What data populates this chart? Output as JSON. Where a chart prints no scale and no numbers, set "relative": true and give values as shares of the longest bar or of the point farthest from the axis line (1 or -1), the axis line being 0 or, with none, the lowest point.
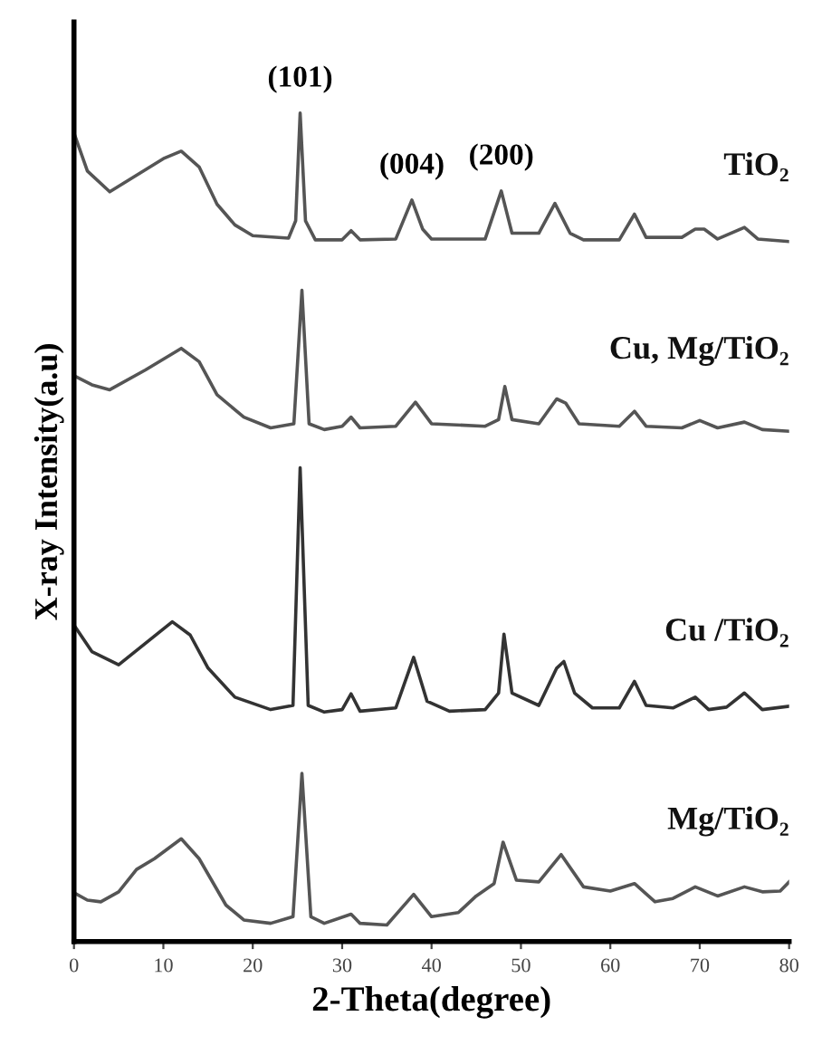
{
  "chart_data": {
    "type": "line",
    "relative": true,
    "xlabel": "2-Theta(degree)",
    "ylabel": "X-ray Intensity(a.u)",
    "xlim": [
      0,
      80
    ],
    "xticks": [
      0,
      10,
      20,
      30,
      40,
      50,
      60,
      70,
      80
    ],
    "legend": false,
    "grid": false,
    "marker": "none",
    "line_style": "solid",
    "annotations": [
      {
        "text": "(101)",
        "x": 25.3,
        "y": 1.0
      },
      {
        "text": "(004)",
        "x": 37.8,
        "y": 0.895
      },
      {
        "text": "(200)",
        "x": 47.8,
        "y": 0.906
      }
    ],
    "series": [
      {
        "name": "TiO₂",
        "color": "#555555",
        "x": [
          0,
          1.5,
          4,
          7,
          10,
          12,
          14,
          16,
          18,
          20,
          24,
          24.8,
          25.3,
          25.9,
          27,
          30,
          31,
          32,
          36,
          37.8,
          39,
          40,
          46,
          47.8,
          49,
          52,
          53.8,
          55.5,
          57,
          61,
          62.7,
          64,
          68,
          69.5,
          70.5,
          72,
          75,
          76.5,
          80
        ],
        "values": [
          0.976,
          0.93,
          0.905,
          0.925,
          0.945,
          0.954,
          0.935,
          0.89,
          0.865,
          0.852,
          0.849,
          0.87,
          1.0,
          0.87,
          0.847,
          0.847,
          0.858,
          0.847,
          0.848,
          0.895,
          0.86,
          0.848,
          0.848,
          0.906,
          0.855,
          0.855,
          0.891,
          0.855,
          0.847,
          0.847,
          0.878,
          0.85,
          0.85,
          0.86,
          0.86,
          0.848,
          0.862,
          0.848,
          0.845
        ]
      },
      {
        "name": "Cu, Mg/TiO₂",
        "color": "#555555",
        "x": [
          0,
          2,
          4,
          8,
          12,
          14,
          16,
          19,
          22,
          24.6,
          25.5,
          26.3,
          28,
          30,
          31,
          32,
          36,
          38.2,
          40,
          46,
          47.5,
          48.2,
          49,
          52,
          54,
          55,
          56.5,
          61,
          62.7,
          64,
          68,
          70,
          72,
          75,
          77,
          80
        ],
        "values": [
          0.683,
          0.672,
          0.666,
          0.69,
          0.716,
          0.7,
          0.66,
          0.633,
          0.62,
          0.625,
          0.786,
          0.625,
          0.618,
          0.622,
          0.633,
          0.62,
          0.622,
          0.651,
          0.625,
          0.622,
          0.63,
          0.67,
          0.63,
          0.625,
          0.655,
          0.65,
          0.625,
          0.622,
          0.64,
          0.622,
          0.62,
          0.629,
          0.62,
          0.627,
          0.618,
          0.616
        ]
      },
      {
        "name": "Cu /TiO₂",
        "color": "#333333",
        "x": [
          0,
          2,
          5,
          8,
          11,
          13,
          15,
          18,
          22,
          24.5,
          25.3,
          26.2,
          28,
          30,
          31,
          32,
          36,
          38,
          39.5,
          42,
          46,
          47.5,
          48.1,
          49,
          52,
          54,
          54.8,
          56,
          58,
          61,
          62.7,
          64,
          67,
          69.5,
          71,
          73,
          75,
          77,
          80
        ],
        "values": [
          0.382,
          0.35,
          0.334,
          0.36,
          0.386,
          0.37,
          0.33,
          0.295,
          0.28,
          0.285,
          0.572,
          0.285,
          0.277,
          0.28,
          0.299,
          0.278,
          0.282,
          0.343,
          0.29,
          0.278,
          0.28,
          0.3,
          0.371,
          0.3,
          0.285,
          0.33,
          0.338,
          0.3,
          0.282,
          0.282,
          0.314,
          0.285,
          0.282,
          0.295,
          0.28,
          0.283,
          0.3,
          0.28,
          0.284
        ]
      },
      {
        "name": "Mg/TiO₂",
        "color": "#555555",
        "x": [
          0,
          1.5,
          3,
          5,
          7,
          9,
          12,
          14,
          17,
          19,
          22,
          24.5,
          25.5,
          26.5,
          28,
          31,
          32,
          35,
          38,
          40,
          43,
          45,
          47,
          48,
          49.5,
          52,
          54.5,
          57,
          60,
          62.7,
          65,
          67,
          69.5,
          72,
          75,
          77,
          79,
          80
        ],
        "values": [
          0.059,
          0.05,
          0.048,
          0.06,
          0.087,
          0.1,
          0.124,
          0.1,
          0.044,
          0.026,
          0.022,
          0.03,
          0.203,
          0.03,
          0.022,
          0.033,
          0.022,
          0.02,
          0.057,
          0.03,
          0.035,
          0.055,
          0.07,
          0.12,
          0.074,
          0.072,
          0.105,
          0.066,
          0.061,
          0.07,
          0.048,
          0.052,
          0.066,
          0.055,
          0.066,
          0.06,
          0.061,
          0.072
        ]
      }
    ]
  }
}
